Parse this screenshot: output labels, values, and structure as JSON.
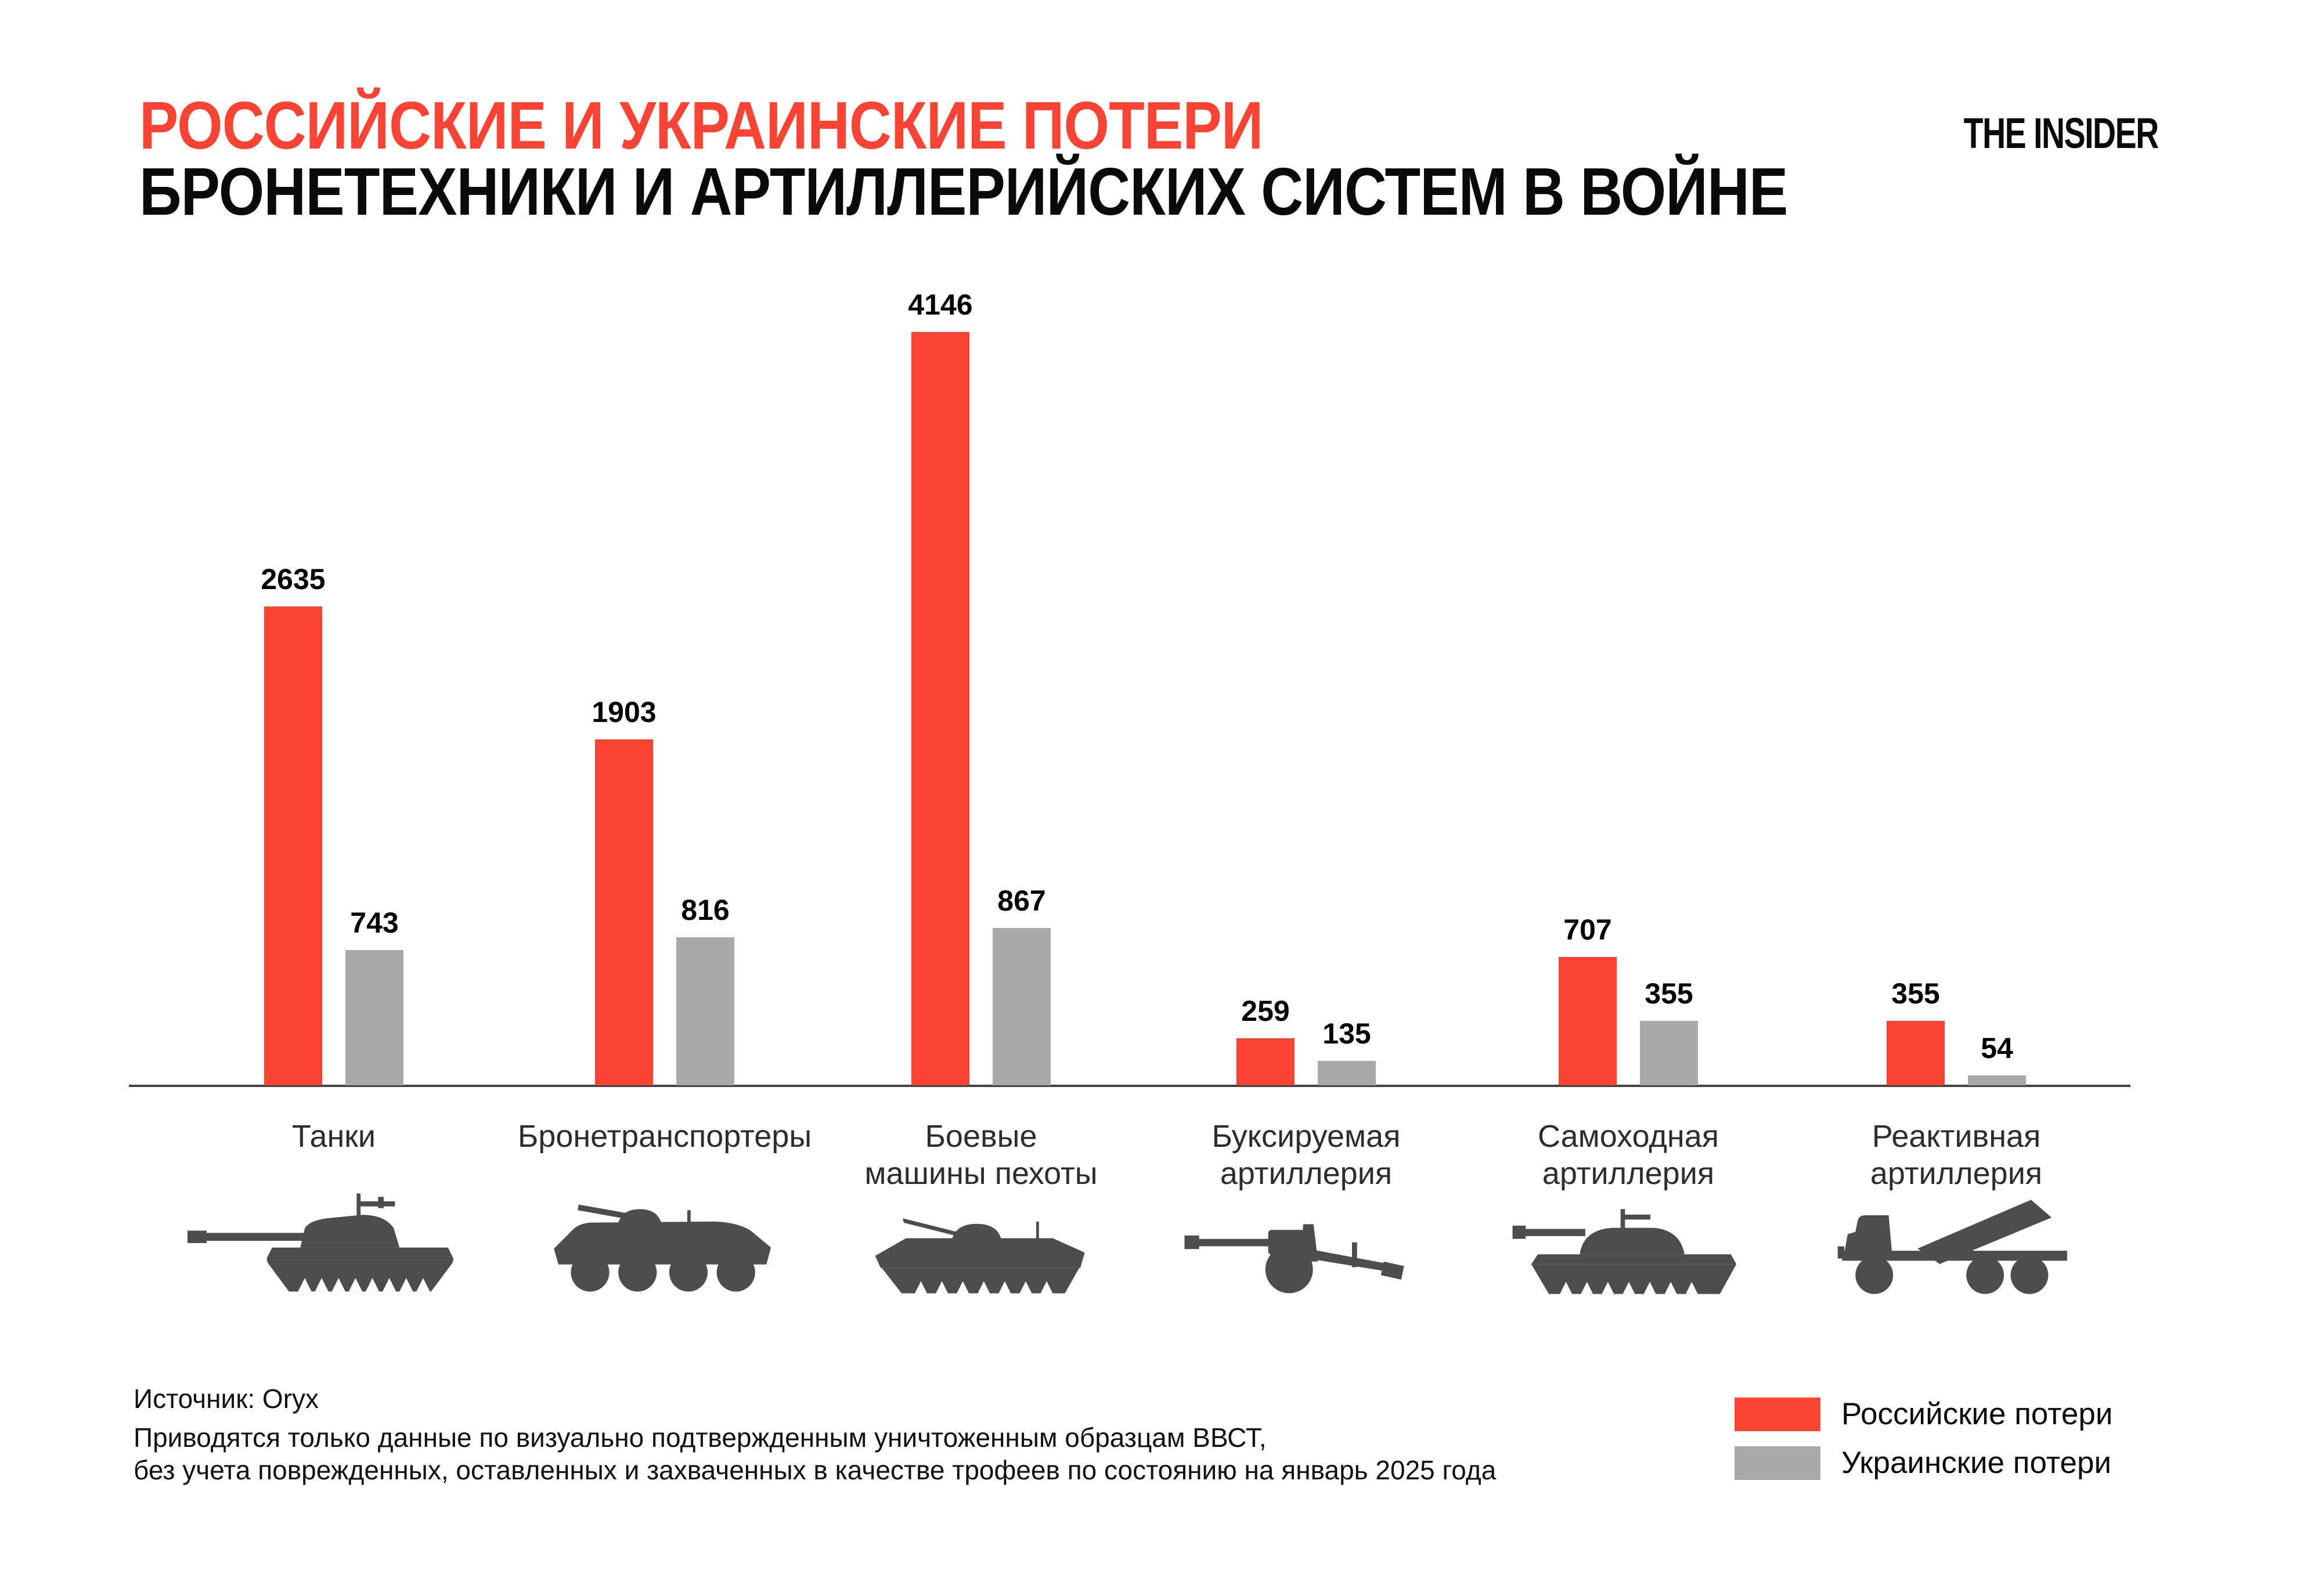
{
  "header": {
    "title_line1": "РОССИЙСКИЕ И УКРАИНСКИЕ ПОТЕРИ",
    "title_line2": "БРОНЕТЕХНИКИ И АРТИЛЛЕРИЙСКИХ СИСТЕМ В ВОЙНЕ",
    "logo_text": "THE INSIDER"
  },
  "chart_data": {
    "type": "bar",
    "title": "Российские и украинские потери бронетехники и артиллерийских систем в войне",
    "categories": [
      "Танки",
      "Бронетранспортеры",
      "Боевые машины пехоты",
      "Буксируемая артиллерия",
      "Самоходная артиллерия",
      "Реактивная артиллерия"
    ],
    "category_lines": [
      [
        "Танки"
      ],
      [
        "Бронетранспортеры"
      ],
      [
        "Боевые",
        "машины пехоты"
      ],
      [
        "Буксируемая",
        "артиллерия"
      ],
      [
        "Самоходная",
        "артиллерия"
      ],
      [
        "Реактивная",
        "артиллерия"
      ]
    ],
    "series": [
      {
        "name": "Российские потери",
        "color": "#FB4334",
        "values": [
          2635,
          1903,
          4146,
          259,
          707,
          355
        ]
      },
      {
        "name": "Украинские потери",
        "color": "#A9A9A9",
        "values": [
          743,
          816,
          867,
          135,
          355,
          54
        ]
      }
    ],
    "value_labels_shown": true,
    "ylim": [
      0,
      4146
    ],
    "grid": false,
    "legend_position": "bottom-right",
    "icons": [
      "tank-icon",
      "apc-icon",
      "ifv-icon",
      "towed-artillery-icon",
      "spg-icon",
      "mlrs-icon"
    ]
  },
  "legend": {
    "items": [
      {
        "label": "Российские потери",
        "color": "#FB4334"
      },
      {
        "label": "Украинские потери",
        "color": "#A9A9A9"
      }
    ]
  },
  "footer": {
    "source": "Источник: Oryx",
    "note_line1": "Приводятся только данные по визуально подтвержденным уничтоженным образцам ВВСТ,",
    "note_line2": "без учета поврежденных, оставленных и захваченных в качестве трофеев по состоянию на январь 2025 года"
  },
  "colors": {
    "russian_red": "#FB4334",
    "ukrainian_gray": "#A9A9A9",
    "axis": "#444444",
    "silhouette": "#4D4D4D",
    "category_text": "#2D2D2D",
    "background": "#FFFFFF"
  }
}
